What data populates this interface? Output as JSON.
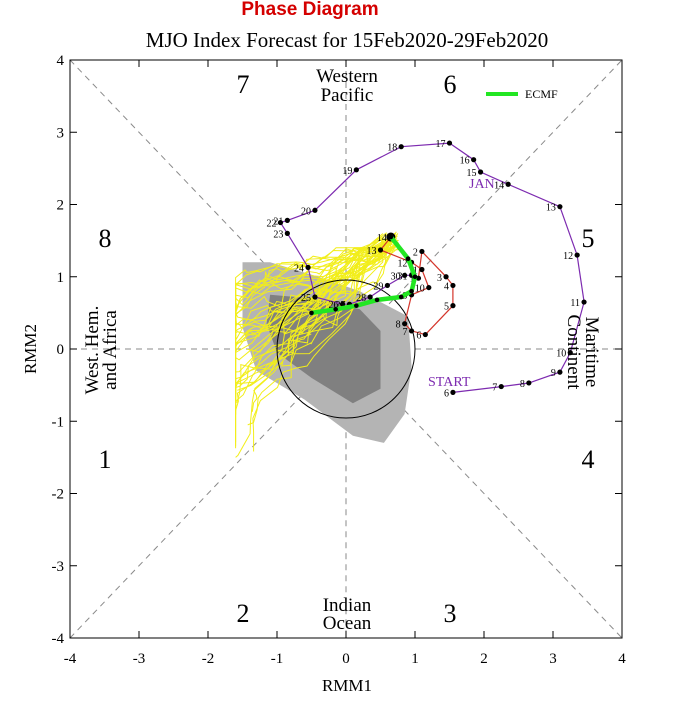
{
  "header": {
    "title": "Phase Diagram"
  },
  "chart_data": {
    "type": "scatter",
    "title": "MJO Index Forecast for 15Feb2020-29Feb2020",
    "xlabel": "RMM1",
    "ylabel": "RMM2",
    "xlim": [
      -4,
      4
    ],
    "ylim": [
      -4,
      4
    ],
    "xticks": [
      "-4",
      "-3",
      "-2",
      "-1",
      "0",
      "1",
      "2",
      "3",
      "4"
    ],
    "yticks": [
      "4",
      "3",
      "2",
      "1",
      "0",
      "-1",
      "-2",
      "-3",
      "-4"
    ],
    "phase_labels": [
      "1",
      "2",
      "3",
      "4",
      "5",
      "6",
      "7",
      "8"
    ],
    "region_labels": {
      "western_pacific": [
        "Western",
        "Pacific"
      ],
      "indian_ocean": [
        "Indian",
        "Ocean"
      ],
      "maritime_continent": [
        "Maritime",
        "Continent"
      ],
      "west_hem_africa": [
        "West. Hem.",
        "and Africa"
      ]
    },
    "annotations": {
      "start": "START",
      "jan": "JAN"
    },
    "legend": {
      "label": "ECMF",
      "position": "top-right",
      "color": "#22e622"
    },
    "colors": {
      "observed": "#7d2bb0",
      "analysis": "#d4352b",
      "ensemble": "#f2ee1a",
      "ensemble_mean": "#22e622",
      "spread_outer": "#b4b4b4",
      "spread_inner": "#808080"
    },
    "series": [
      {
        "name": "observed",
        "labels": [
          "6",
          "7",
          "8",
          "9",
          "10",
          "11",
          "12",
          "13",
          "14",
          "15",
          "16",
          "17",
          "18",
          "19",
          "20",
          "21",
          "22",
          "23",
          "24",
          "25",
          "26",
          "27",
          "28",
          "29",
          "30",
          "31",
          "1",
          "2",
          "3",
          "4",
          "5",
          "6",
          "7",
          "8",
          "9",
          "10",
          "11",
          "12",
          "13",
          "14"
        ],
        "x": [
          1.55,
          2.25,
          2.65,
          3.1,
          3.25,
          3.45,
          3.35,
          3.1,
          2.35,
          1.95,
          1.85,
          1.5,
          0.8,
          0.15,
          -0.45,
          -0.85,
          -0.95,
          -0.85,
          -0.55,
          -0.45,
          -0.05,
          0.05,
          0.35,
          0.6,
          0.85,
          0.95,
          1.05,
          1.1,
          1.45,
          1.55,
          1.55,
          1.15,
          0.95,
          0.85,
          0.95,
          1.2,
          1.1,
          0.95,
          0.5,
          0.65
        ],
        "y": [
          -0.6,
          -0.52,
          -0.47,
          -0.32,
          -0.05,
          0.65,
          1.3,
          1.97,
          2.28,
          2.45,
          2.62,
          2.85,
          2.8,
          2.48,
          1.92,
          1.78,
          1.75,
          1.6,
          1.13,
          0.72,
          0.62,
          0.62,
          0.72,
          0.88,
          1.02,
          1.02,
          0.98,
          1.35,
          1.0,
          0.88,
          0.6,
          0.2,
          0.25,
          0.35,
          0.75,
          0.85,
          1.1,
          1.2,
          1.37,
          1.55
        ]
      },
      {
        "name": "ensemble_mean",
        "x": [
          0.65,
          0.9,
          1.0,
          0.95,
          0.8,
          0.45,
          0.15,
          -0.15,
          -0.5
        ],
        "y": [
          1.55,
          1.25,
          1.0,
          0.8,
          0.72,
          0.68,
          0.6,
          0.55,
          0.5
        ]
      }
    ]
  }
}
